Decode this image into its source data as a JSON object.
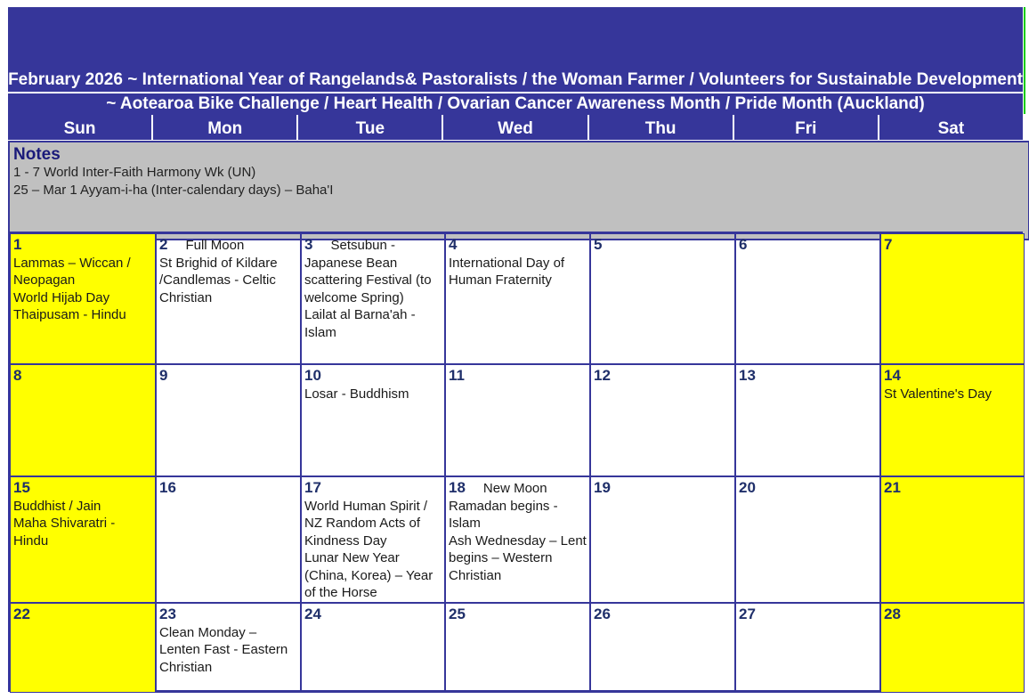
{
  "header": {
    "title": "February 2026     ~  International Year of Rangelands& Pastoralists / the Woman Farmer / Volunteers for Sustainable Development",
    "subtitle": "~ Aotearoa Bike Challenge / Heart Health / Ovarian Cancer Awareness  Month / Pride Month (Auckland)"
  },
  "weekdays": [
    "Sun",
    "Mon",
    "Tue",
    "Wed",
    "Thu",
    "Fri",
    "Sat"
  ],
  "notes": {
    "title": "Notes",
    "lines": [
      "1 - 7   World Inter-Faith Harmony Wk (UN)",
      "25 – Mar 1   Ayyam-i-ha (Inter-calendary days) – Baha'I"
    ]
  },
  "colors": {
    "header": "#36369a",
    "weekend": "#ffff00",
    "notes": "#c0c0c0"
  },
  "days": [
    {
      "n": "1",
      "we": true,
      "events": [
        "Lammas – Wiccan / Neopagan",
        "World Hijab Day",
        "Thaipusam - Hindu"
      ]
    },
    {
      "n": "2",
      "moon": "Full Moon",
      "events": [
        "St Brighid of Kildare /Candlemas -  Celtic Christian"
      ]
    },
    {
      "n": "3",
      "moon": "Setsubun  -",
      "events": [
        "Japanese Bean scattering Festival (to welcome Spring)",
        "Lailat al Barna'ah  - Islam"
      ]
    },
    {
      "n": "4",
      "events": [
        "International Day of Human Fraternity"
      ]
    },
    {
      "n": "5",
      "events": []
    },
    {
      "n": "6",
      "events": []
    },
    {
      "n": "7",
      "we": true,
      "events": []
    },
    {
      "n": "8",
      "we": true,
      "events": []
    },
    {
      "n": "9",
      "events": []
    },
    {
      "n": "10",
      "events": [
        "Losar  - Buddhism"
      ]
    },
    {
      "n": "11",
      "events": []
    },
    {
      "n": "12",
      "events": []
    },
    {
      "n": "13",
      "events": []
    },
    {
      "n": "14",
      "we": true,
      "events": [
        "St Valentine's Day"
      ]
    },
    {
      "n": "15",
      "we": true,
      "events": [
        "Buddhist / Jain",
        "Maha Shivaratri  - Hindu"
      ]
    },
    {
      "n": "16",
      "events": []
    },
    {
      "n": "17",
      "events": [
        "World Human Spirit / NZ Random Acts of Kindness Day",
        "Lunar New Year (China, Korea) – Year of the Horse"
      ]
    },
    {
      "n": "18",
      "moon": "New Moon",
      "events": [
        "Ramadan begins  - Islam",
        "Ash Wednesday – Lent begins – Western Christian"
      ]
    },
    {
      "n": "19",
      "events": []
    },
    {
      "n": "20",
      "events": []
    },
    {
      "n": "21",
      "we": true,
      "events": []
    },
    {
      "n": "22",
      "we": true,
      "events": []
    },
    {
      "n": "23",
      "events": [
        "Clean Monday – Lenten Fast  - Eastern Christian"
      ]
    },
    {
      "n": "24",
      "events": []
    },
    {
      "n": "25",
      "events": []
    },
    {
      "n": "26",
      "events": []
    },
    {
      "n": "27",
      "events": []
    },
    {
      "n": "28",
      "we": true,
      "events": []
    }
  ]
}
